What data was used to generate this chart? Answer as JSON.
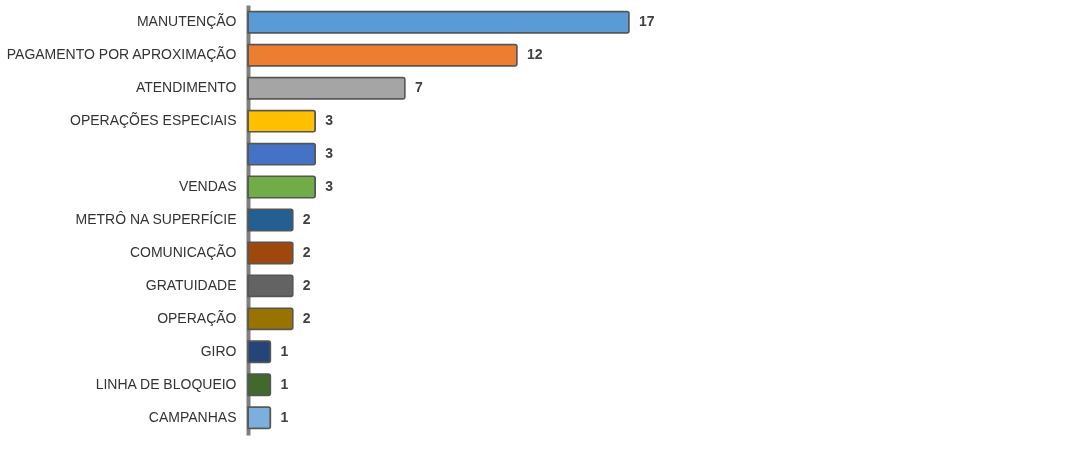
{
  "chart_data": {
    "type": "bar",
    "orientation": "horizontal",
    "data_labels": true,
    "categories": [
      "MANUTENÇÃO",
      "PAGAMENTO POR APROXIMAÇÃO",
      "ATENDIMENTO",
      "OPERAÇÕES ESPECIAIS",
      null,
      "VENDAS",
      "METRÔ NA SUPERFÍCIE",
      "COMUNICAÇÃO",
      "GRATUIDADE",
      "OPERAÇÃO",
      "GIRO",
      "LINHA DE BLOQUEIO",
      "CAMPANHAS"
    ],
    "values": [
      17,
      12,
      7,
      3,
      3,
      3,
      2,
      2,
      2,
      2,
      1,
      1,
      1
    ],
    "colors": [
      "#5b9bd5",
      "#ed7d31",
      "#a5a5a5",
      "#ffc000",
      "#4472c4",
      "#70ad47",
      "#255e91",
      "#9e480e",
      "#636363",
      "#997300",
      "#264478",
      "#43682b",
      "#7cafdd"
    ]
  }
}
